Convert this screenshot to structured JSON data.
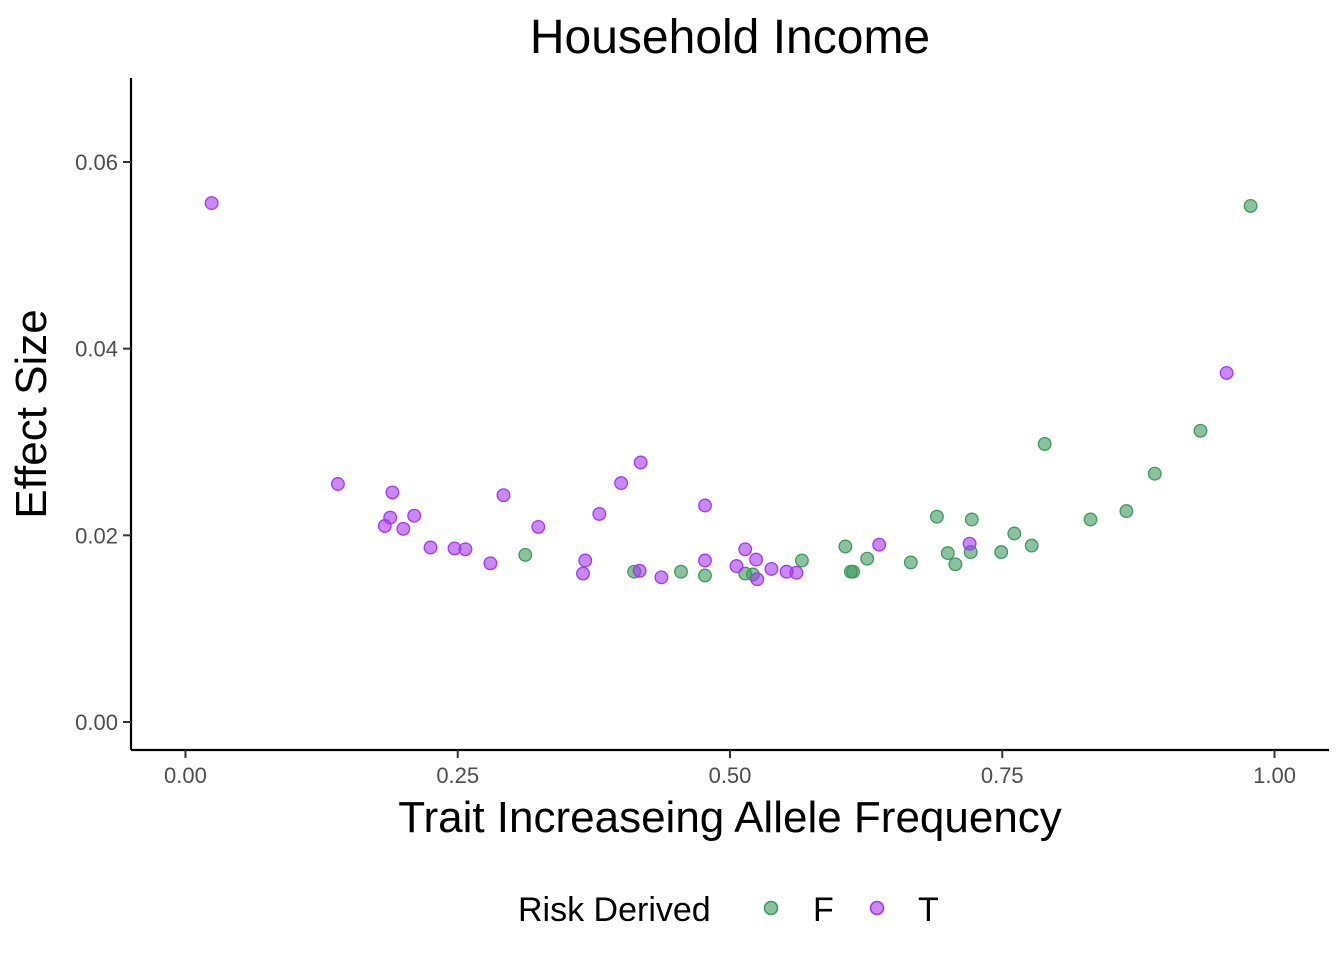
{
  "chart_data": {
    "type": "scatter",
    "title": "Household Income",
    "xlabel": "Trait Increaseing Allele Frequency",
    "ylabel": "Effect Size",
    "xlim": [
      -0.05,
      1.05
    ],
    "ylim": [
      -0.003,
      0.069
    ],
    "x_ticks": [
      "0.00",
      "0.25",
      "0.50",
      "0.75",
      "1.00"
    ],
    "y_ticks": [
      "0.00",
      "0.02",
      "0.04",
      "0.06"
    ],
    "grid": false,
    "legend": {
      "title": "Risk Derived",
      "position": "bottom",
      "entries": [
        "F",
        "T"
      ]
    },
    "colors": {
      "F": "#3d9a5e",
      "T": "#a637f0"
    },
    "series": [
      {
        "name": "F",
        "points": [
          [
            0.312,
            0.0179
          ],
          [
            0.412,
            0.0161
          ],
          [
            0.455,
            0.0161
          ],
          [
            0.477,
            0.0157
          ],
          [
            0.514,
            0.0159
          ],
          [
            0.521,
            0.0158
          ],
          [
            0.566,
            0.0173
          ],
          [
            0.606,
            0.0188
          ],
          [
            0.611,
            0.0161
          ],
          [
            0.613,
            0.0161
          ],
          [
            0.626,
            0.0175
          ],
          [
            0.666,
            0.0171
          ],
          [
            0.69,
            0.022
          ],
          [
            0.7,
            0.0181
          ],
          [
            0.707,
            0.0169
          ],
          [
            0.721,
            0.0182
          ],
          [
            0.722,
            0.0217
          ],
          [
            0.749,
            0.0182
          ],
          [
            0.761,
            0.0202
          ],
          [
            0.777,
            0.0189
          ],
          [
            0.789,
            0.0298
          ],
          [
            0.831,
            0.0217
          ],
          [
            0.864,
            0.0226
          ],
          [
            0.89,
            0.0266
          ],
          [
            0.932,
            0.0312
          ],
          [
            0.978,
            0.0553
          ]
        ]
      },
      {
        "name": "T",
        "points": [
          [
            0.024,
            0.0556
          ],
          [
            0.14,
            0.0255
          ],
          [
            0.183,
            0.021
          ],
          [
            0.188,
            0.0219
          ],
          [
            0.19,
            0.0246
          ],
          [
            0.2,
            0.0207
          ],
          [
            0.21,
            0.0221
          ],
          [
            0.225,
            0.0187
          ],
          [
            0.247,
            0.0186
          ],
          [
            0.257,
            0.0185
          ],
          [
            0.28,
            0.017
          ],
          [
            0.292,
            0.0243
          ],
          [
            0.324,
            0.0209
          ],
          [
            0.365,
            0.0159
          ],
          [
            0.367,
            0.0173
          ],
          [
            0.38,
            0.0223
          ],
          [
            0.4,
            0.0256
          ],
          [
            0.417,
            0.0162
          ],
          [
            0.418,
            0.0278
          ],
          [
            0.437,
            0.0155
          ],
          [
            0.477,
            0.0173
          ],
          [
            0.477,
            0.0232
          ],
          [
            0.506,
            0.0167
          ],
          [
            0.514,
            0.0185
          ],
          [
            0.524,
            0.0174
          ],
          [
            0.525,
            0.0153
          ],
          [
            0.538,
            0.0164
          ],
          [
            0.552,
            0.0161
          ],
          [
            0.561,
            0.016
          ],
          [
            0.637,
            0.019
          ],
          [
            0.72,
            0.0191
          ],
          [
            0.956,
            0.0374
          ]
        ]
      }
    ]
  }
}
